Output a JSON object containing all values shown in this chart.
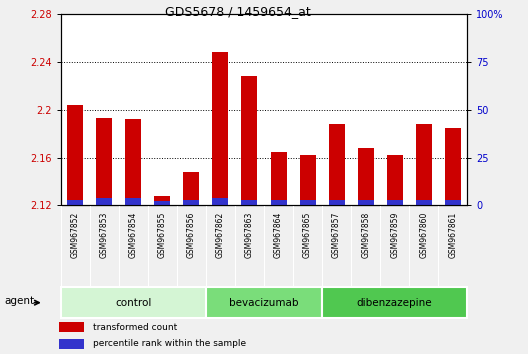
{
  "title": "GDS5678 / 1459654_at",
  "samples": [
    "GSM967852",
    "GSM967853",
    "GSM967854",
    "GSM967855",
    "GSM967856",
    "GSM967862",
    "GSM967863",
    "GSM967864",
    "GSM967865",
    "GSM967857",
    "GSM967858",
    "GSM967859",
    "GSM967860",
    "GSM967861"
  ],
  "transformed_count": [
    2.204,
    2.193,
    2.192,
    2.128,
    2.148,
    2.248,
    2.228,
    2.165,
    2.162,
    2.188,
    2.168,
    2.162,
    2.188,
    2.185
  ],
  "percentile_rank": [
    3,
    4,
    4,
    2,
    3,
    4,
    3,
    3,
    3,
    3,
    3,
    3,
    3,
    3
  ],
  "ymin": 2.12,
  "ymax": 2.28,
  "yticks": [
    2.12,
    2.16,
    2.2,
    2.24,
    2.28
  ],
  "ytick_labels": [
    "2.12",
    "2.16",
    "2.2",
    "2.24",
    "2.28"
  ],
  "y2min": 0,
  "y2max": 100,
  "y2ticks": [
    0,
    25,
    50,
    75,
    100
  ],
  "y2tick_labels": [
    "0",
    "25",
    "50",
    "75",
    "100%"
  ],
  "groups": [
    {
      "label": "control",
      "start": 0,
      "end": 5,
      "color": "#d4f5d4"
    },
    {
      "label": "bevacizumab",
      "start": 5,
      "end": 9,
      "color": "#7add7a"
    },
    {
      "label": "dibenzazepine",
      "start": 9,
      "end": 14,
      "color": "#50c850"
    }
  ],
  "bar_width": 0.55,
  "red_color": "#cc0000",
  "blue_color": "#3333cc",
  "agent_label": "agent",
  "legend_items": [
    {
      "label": "transformed count",
      "color": "#cc0000"
    },
    {
      "label": "percentile rank within the sample",
      "color": "#3333cc"
    }
  ],
  "left_axis_color": "#cc0000",
  "right_axis_color": "#0000cc",
  "sample_bg_color": "#d8d8d8",
  "fig_bg_color": "#f0f0f0"
}
